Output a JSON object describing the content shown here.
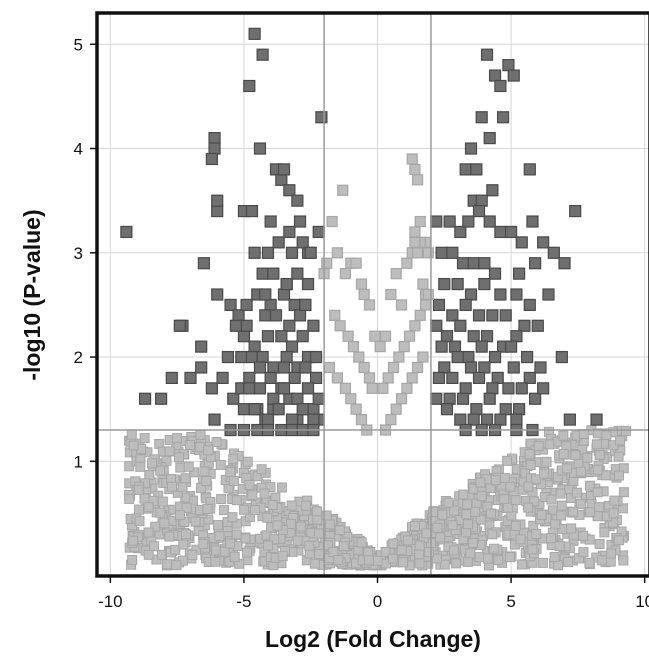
{
  "chart_data": {
    "type": "scatter",
    "title": "",
    "xlabel": "Log2 (Fold Change)",
    "ylabel": "-log10 (P-value)",
    "xlim": [
      -10.5,
      10.2
    ],
    "ylim": [
      -0.1,
      5.3
    ],
    "xticks": [
      -10,
      -5,
      0,
      5,
      10
    ],
    "xtick_labels": [
      "-10",
      "-5",
      "0",
      "5",
      "10"
    ],
    "yticks": [
      1,
      2,
      3,
      4,
      5
    ],
    "ytick_labels": [
      "1",
      "2",
      "3",
      "4",
      "5"
    ],
    "grid": true,
    "thresholds": {
      "fold_change": [
        -2,
        2
      ],
      "p_value": 1.3
    },
    "colors": {
      "significant": "#6f6f6f",
      "not_significant": "#bdbdbd",
      "marker_edge": "#4a4a4a",
      "marker_edge_light": "#a6a6a6"
    },
    "series": [
      {
        "values_x": [
          -4.6,
          -4.3,
          -4.8,
          -2.1,
          -6.1,
          -6.1,
          -6.2,
          -6.0,
          -4.4,
          -3.8,
          -3.6,
          -3.3,
          -3.0,
          -2.9,
          -3.5,
          -6.0,
          -5.0,
          -4.7,
          -4.0,
          -3.3,
          -2.6,
          -2.2,
          -9.4,
          -8.7,
          -8.1,
          -7.7,
          -7.3,
          -7.0,
          -6.6,
          -6.2,
          -5.8,
          -5.4,
          -5.1,
          -4.8,
          -4.5,
          -4.2,
          -3.9,
          -3.6,
          -3.3,
          -3.0,
          -2.7,
          -2.4,
          -2.2,
          -4.6,
          -4.1,
          -3.7,
          -3.2,
          -2.8,
          -2.5,
          -4.3,
          -3.9,
          -3.4,
          -3.0,
          -2.6,
          -4.5,
          -4.0,
          -3.5,
          -3.1,
          -2.7,
          -4.2,
          -3.8,
          -3.3,
          -2.9,
          -2.4,
          -5.0,
          -4.6,
          -4.1,
          -3.6,
          -3.2,
          -2.8,
          -5.1,
          -4.7,
          -4.3,
          -3.9,
          -3.4,
          -3.0,
          -2.6,
          -2.3,
          -6.5,
          -6.0,
          -5.5,
          -5.2,
          -4.9,
          -4.4,
          -4.0,
          -3.5,
          -3.1,
          -2.7,
          -2.3,
          -5.3,
          -4.8,
          -4.4,
          -3.9,
          -3.5,
          -3.0,
          -2.6,
          -2.2,
          -5.6,
          -5.0,
          -4.6,
          -4.1,
          -3.7,
          -3.2,
          -2.8,
          -2.4,
          -7.4,
          -6.6,
          -6.1,
          -5.5,
          -5.0,
          -4.5,
          -4.1,
          -3.6,
          -3.2,
          -2.8,
          -2.4,
          -4.9,
          -4.2,
          -3.4,
          -2.7,
          4.1,
          4.4,
          4.9,
          5.1,
          4.6,
          3.9,
          3.5,
          4.2,
          4.7,
          3.3,
          3.7,
          5.7,
          4.3,
          3.6,
          3.9,
          7.4,
          2.2,
          2.7,
          3.1,
          3.4,
          3.8,
          4.2,
          4.6,
          5.0,
          5.4,
          5.8,
          6.2,
          6.6,
          7.0,
          7.2,
          8.2,
          2.4,
          2.8,
          3.2,
          3.6,
          4.0,
          4.4,
          5.3,
          5.9,
          6.4,
          2.5,
          3.0,
          3.5,
          4.0,
          4.6,
          5.2,
          5.7,
          2.3,
          2.8,
          3.3,
          3.8,
          4.3,
          4.8,
          5.5,
          6.0,
          2.2,
          2.6,
          3.1,
          3.6,
          4.1,
          4.7,
          5.2,
          2.4,
          2.9,
          3.4,
          3.9,
          4.4,
          5.0,
          5.6,
          6.1,
          2.5,
          3.0,
          3.5,
          4.0,
          4.5,
          5.1,
          5.7,
          6.9,
          2.3,
          2.8,
          3.3,
          3.8,
          4.3,
          4.9,
          5.4,
          5.9,
          2.2,
          2.7,
          3.2,
          3.7,
          4.2,
          4.8,
          5.3,
          6.2,
          2.6,
          3.1,
          3.6,
          4.1,
          4.6,
          5.2,
          5.8,
          3.3,
          3.9,
          4.4,
          5.2
        ],
        "values_y": [
          5.1,
          4.9,
          4.6,
          4.3,
          4.1,
          4.0,
          3.9,
          3.4,
          4.0,
          3.8,
          3.7,
          3.6,
          3.5,
          3.3,
          3.8,
          3.5,
          3.4,
          3.4,
          3.3,
          3.2,
          3.0,
          3.2,
          3.2,
          1.6,
          1.6,
          1.8,
          2.3,
          1.8,
          2.1,
          1.7,
          1.8,
          1.6,
          1.7,
          1.8,
          1.5,
          1.4,
          1.5,
          1.7,
          1.6,
          1.4,
          1.5,
          1.5,
          1.4,
          3.0,
          3.0,
          3.1,
          3.0,
          3.1,
          3.0,
          2.8,
          2.8,
          2.7,
          2.8,
          2.7,
          2.6,
          2.5,
          2.6,
          2.5,
          2.5,
          2.4,
          2.4,
          2.3,
          2.4,
          2.3,
          2.2,
          2.1,
          2.2,
          2.2,
          2.1,
          2.2,
          2.0,
          2.0,
          2.0,
          1.9,
          2.0,
          1.9,
          2.0,
          2.0,
          2.9,
          2.6,
          2.5,
          2.4,
          2.3,
          1.9,
          1.8,
          1.9,
          1.8,
          1.9,
          1.8,
          2.3,
          1.7,
          1.7,
          1.6,
          1.7,
          1.6,
          1.7,
          1.6,
          2.0,
          1.5,
          1.5,
          1.4,
          1.5,
          1.4,
          1.5,
          1.4,
          2.3,
          1.9,
          1.4,
          1.3,
          1.3,
          1.3,
          1.3,
          1.3,
          1.3,
          1.3,
          1.3,
          2.5,
          2.6,
          2.7,
          2.5,
          4.9,
          4.7,
          4.8,
          4.7,
          4.6,
          4.3,
          4.0,
          4.1,
          4.3,
          3.8,
          3.8,
          3.8,
          3.6,
          3.5,
          3.5,
          3.4,
          3.3,
          3.3,
          3.2,
          3.3,
          3.4,
          3.3,
          3.2,
          3.2,
          3.1,
          3.3,
          3.1,
          3.0,
          2.9,
          1.4,
          1.4,
          3.0,
          3.0,
          2.9,
          2.9,
          2.9,
          2.8,
          2.8,
          2.9,
          2.6,
          2.7,
          2.7,
          2.6,
          2.7,
          2.6,
          2.6,
          2.5,
          2.5,
          2.4,
          2.5,
          2.4,
          2.4,
          2.4,
          2.3,
          2.3,
          2.3,
          2.2,
          2.3,
          2.2,
          2.2,
          2.1,
          2.2,
          2.1,
          2.1,
          2.0,
          2.1,
          2.0,
          2.1,
          2.0,
          1.9,
          1.9,
          2.0,
          1.9,
          1.9,
          1.8,
          1.9,
          1.8,
          2.0,
          1.8,
          1.8,
          1.7,
          1.8,
          1.7,
          1.7,
          1.7,
          1.6,
          1.6,
          1.6,
          1.6,
          1.5,
          1.6,
          1.5,
          1.5,
          1.7,
          1.5,
          1.4,
          1.4,
          1.4,
          1.4,
          1.4,
          1.3,
          1.3,
          1.3,
          1.3,
          1.3
        ]
      },
      {
        "values_x": [
          -2.0,
          -1.9,
          -1.7,
          -1.5,
          -1.3,
          -1.2,
          -1.0,
          -0.8,
          -0.6,
          -0.5,
          -0.3,
          -0.1,
          0.1,
          0.3,
          0.5,
          0.7,
          0.9,
          1.1,
          1.3,
          1.4,
          1.6,
          1.8,
          1.9,
          1.3,
          1.4,
          1.5,
          1.6,
          1.5,
          1.4,
          1.7,
          1.8,
          1.9,
          -1.6,
          -1.4,
          -1.1,
          -0.9,
          -0.7,
          -0.5,
          -0.3,
          -0.2,
          0.2,
          0.4,
          0.6,
          0.8,
          1.0,
          1.2,
          1.4,
          1.6,
          1.8,
          -1.8,
          -1.5,
          -1.2,
          -1.0,
          -0.8,
          -0.6,
          -0.4,
          0.3,
          0.5,
          0.7,
          0.9,
          1.1,
          1.3,
          1.5,
          1.7
        ],
        "values_y": [
          2.8,
          2.9,
          3.3,
          3.0,
          3.6,
          2.8,
          2.9,
          2.9,
          2.7,
          2.6,
          2.5,
          2.2,
          2.1,
          2.2,
          2.6,
          2.8,
          2.5,
          2.9,
          3.0,
          3.2,
          3.3,
          3.1,
          3.0,
          3.9,
          3.8,
          3.7,
          3.1,
          3.0,
          3.1,
          2.7,
          2.6,
          2.6,
          2.4,
          2.3,
          2.2,
          2.1,
          2.0,
          1.9,
          1.8,
          1.7,
          1.7,
          1.8,
          1.9,
          2.0,
          2.1,
          2.2,
          2.3,
          2.4,
          2.5,
          1.9,
          1.8,
          1.7,
          1.6,
          1.5,
          1.4,
          1.3,
          1.3,
          1.4,
          1.5,
          1.6,
          1.7,
          1.8,
          1.9,
          2.0
        ]
      }
    ]
  }
}
